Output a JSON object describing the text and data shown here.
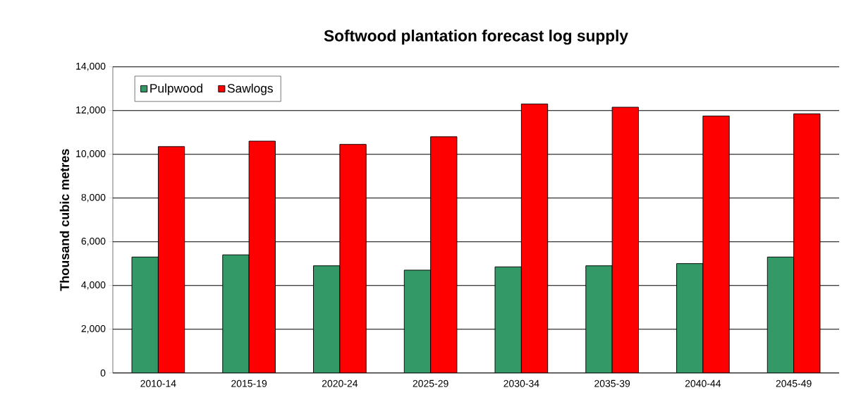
{
  "chart_data": {
    "type": "bar",
    "title": "Softwood plantation forecast log supply",
    "ylabel": "Thousand cubic metres",
    "categories": [
      "2010-14",
      "2015-19",
      "2020-24",
      "2025-29",
      "2030-34",
      "2035-39",
      "2040-44",
      "2045-49"
    ],
    "series": [
      {
        "name": "Pulpwood",
        "color": "#339966",
        "values": [
          5300,
          5400,
          4900,
          4700,
          4850,
          4900,
          5000,
          5300
        ]
      },
      {
        "name": "Sawlogs",
        "color": "#ff0000",
        "values": [
          10350,
          10600,
          10450,
          10800,
          12300,
          12150,
          11750,
          11850
        ]
      }
    ],
    "ylim": [
      0,
      14000
    ],
    "yticks": [
      0,
      {
        "value": 2000,
        "label": "2,000"
      },
      {
        "value": 4000,
        "label": "4,000"
      },
      {
        "value": 6000,
        "label": "6,000"
      },
      {
        "value": 8000,
        "label": "8,000"
      },
      {
        "value": 10000,
        "label": "10,000"
      },
      {
        "value": 12000,
        "label": "12,000"
      },
      {
        "value": 14000,
        "label": "14,000"
      }
    ],
    "grid": "y",
    "legend": "top left"
  }
}
